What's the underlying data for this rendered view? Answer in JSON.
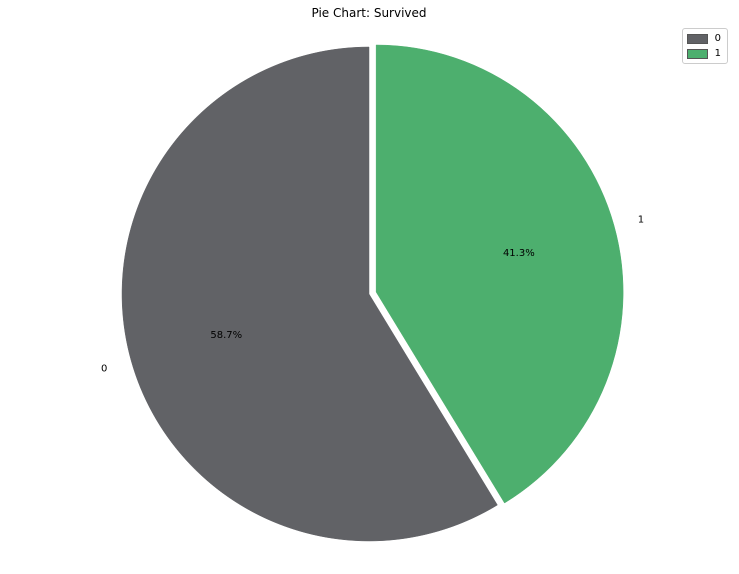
{
  "chart_data": {
    "type": "pie",
    "title": "Pie Chart: Survived",
    "slices": [
      {
        "label": "0",
        "value": 58.7,
        "pct_label": "58.7%",
        "color": "#616266",
        "explode": 0.0
      },
      {
        "label": "1",
        "value": 41.3,
        "pct_label": "41.3%",
        "color": "#4daf6e",
        "explode": 0.03
      }
    ],
    "legend": {
      "placement": "top-right",
      "entries": [
        {
          "label": "0",
          "color": "#616266"
        },
        {
          "label": "1",
          "color": "#4daf6e"
        }
      ]
    }
  }
}
